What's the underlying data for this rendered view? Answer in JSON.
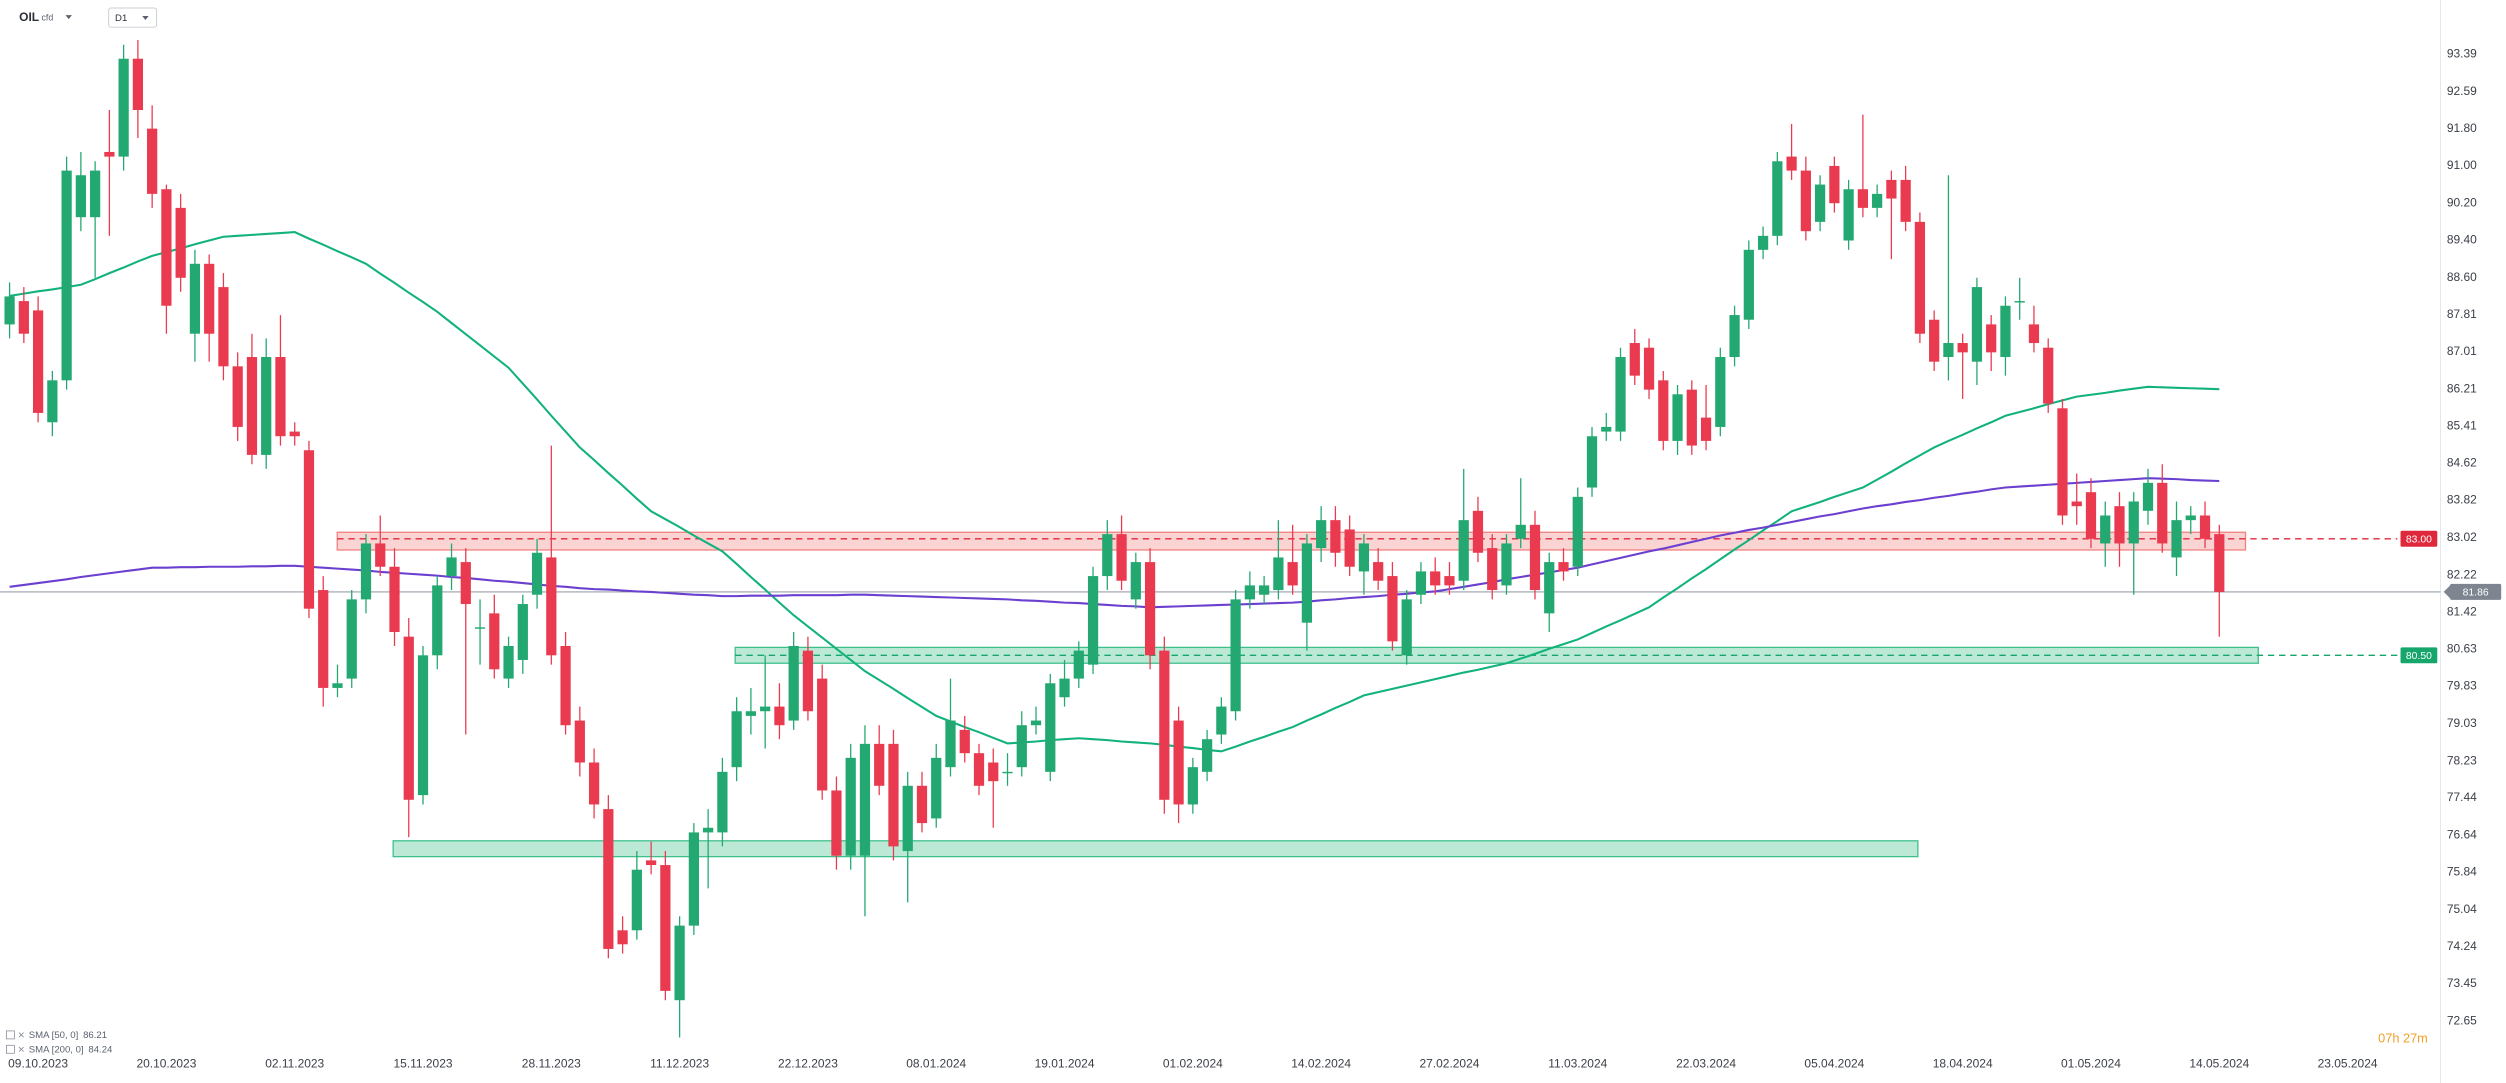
{
  "chart_data": {
    "type": "candlestick",
    "symbol": "OIL",
    "instrument": "cfd",
    "timeframe": "D1",
    "countdown": "07h 27m",
    "categories": [
      null,
      null,
      "09.10.2023",
      null,
      null,
      null,
      null,
      null,
      null,
      null,
      null,
      "20.10.2023",
      null,
      null,
      null,
      null,
      null,
      null,
      null,
      null,
      "02.11.2023",
      null,
      null,
      null,
      null,
      null,
      null,
      null,
      null,
      "15.11.2023",
      null,
      null,
      null,
      null,
      null,
      null,
      null,
      null,
      "28.11.2023",
      null,
      null,
      null,
      null,
      null,
      null,
      null,
      null,
      "11.12.2023",
      null,
      null,
      null,
      null,
      null,
      null,
      null,
      null,
      "22.12.2023",
      null,
      null,
      null,
      null,
      null,
      null,
      null,
      null,
      "08.01.2024",
      null,
      null,
      null,
      null,
      null,
      null,
      null,
      null,
      "19.01.2024",
      null,
      null,
      null,
      null,
      null,
      null,
      null,
      null,
      "01.02.2024",
      null,
      null,
      null,
      null,
      null,
      null,
      null,
      null,
      "14.02.2024",
      null,
      null,
      null,
      null,
      null,
      null,
      null,
      null,
      "27.02.2024",
      null,
      null,
      null,
      null,
      null,
      null,
      null,
      null,
      "11.03.2024",
      null,
      null,
      null,
      null,
      null,
      null,
      null,
      null,
      "22.03.2024",
      null,
      null,
      null,
      null,
      null,
      null,
      null,
      null,
      "05.04.2024",
      null,
      null,
      null,
      null,
      null,
      null,
      null,
      null,
      "18.04.2024",
      null,
      null,
      null,
      null,
      null,
      null,
      null,
      null,
      "01.05.2024",
      null,
      null,
      null,
      null,
      null,
      null,
      null,
      null,
      "14.05.2024",
      null,
      null,
      null,
      null,
      null,
      null,
      null,
      null,
      "23.05.2024",
      null,
      null,
      null,
      null,
      null
    ],
    "open": [
      87.6,
      88.1,
      87.9,
      85.5,
      86.4,
      89.9,
      89.9,
      91.3,
      91.2,
      93.3,
      91.8,
      90.5,
      90.1,
      87.4,
      88.9,
      88.4,
      86.7,
      86.9,
      84.8,
      86.9,
      85.3,
      84.9,
      81.9,
      79.8,
      80.0,
      81.7,
      82.9,
      82.4,
      80.9,
      77.5,
      80.5,
      82.2,
      82.5,
      81.1,
      81.4,
      80.0,
      80.4,
      81.8,
      82.6,
      80.7,
      79.1,
      78.2,
      77.2,
      74.6,
      74.6,
      76.1,
      76.0,
      73.1,
      74.7,
      76.7,
      76.7,
      78.1,
      79.2,
      79.3,
      79.4,
      79.1,
      80.6,
      80.0,
      77.6,
      76.2,
      76.2,
      78.6,
      78.6,
      76.3,
      77.7,
      77.0,
      78.1,
      78.9,
      78.4,
      78.2,
      78.0,
      78.1,
      79.0,
      78.0,
      79.6,
      80.0,
      80.3,
      82.2,
      83.1,
      81.7,
      82.5,
      80.6,
      79.1,
      77.3,
      78.0,
      78.8,
      79.3,
      81.7,
      81.8,
      81.9,
      82.5,
      81.2,
      82.8,
      83.4,
      83.2,
      82.3,
      82.5,
      82.2,
      80.5,
      81.8,
      82.3,
      82.2,
      82.1,
      83.6,
      82.8,
      82.0,
      83.0,
      83.3,
      81.4,
      82.5,
      82.4,
      84.1,
      85.3,
      85.3,
      87.2,
      87.1,
      86.4,
      85.1,
      86.2,
      85.6,
      85.4,
      86.9,
      87.7,
      89.2,
      89.5,
      91.2,
      90.9,
      89.8,
      91.0,
      89.4,
      90.5,
      90.1,
      90.7,
      90.7,
      89.8,
      87.7,
      86.9,
      87.2,
      86.8,
      87.6,
      86.9,
      88.1,
      87.6,
      87.1,
      85.8,
      83.8,
      84.0,
      82.9,
      83.7,
      82.9,
      83.6,
      84.2,
      82.6,
      83.4,
      83.5,
      83.1,
      null,
      null,
      null,
      null,
      null,
      null,
      null,
      null,
      null,
      null,
      null,
      null,
      null,
      null
    ],
    "high": [
      88.5,
      88.4,
      88.2,
      86.6,
      91.2,
      91.3,
      91.1,
      92.2,
      93.6,
      93.7,
      92.3,
      90.6,
      90.4,
      89.2,
      89.1,
      88.7,
      87.0,
      87.4,
      87.3,
      87.8,
      85.5,
      85.1,
      82.2,
      80.3,
      81.9,
      83.1,
      83.5,
      82.8,
      81.3,
      80.7,
      82.2,
      82.9,
      82.8,
      81.7,
      81.8,
      80.9,
      81.8,
      83.0,
      85.0,
      81.0,
      79.4,
      78.5,
      77.5,
      74.9,
      76.3,
      76.5,
      76.3,
      74.9,
      76.9,
      77.2,
      78.3,
      79.6,
      79.8,
      80.5,
      79.9,
      81.0,
      80.9,
      80.3,
      77.9,
      78.6,
      79.0,
      79.0,
      78.9,
      78.0,
      78.0,
      78.6,
      80.0,
      79.2,
      78.6,
      78.5,
      78.4,
      79.3,
      79.4,
      80.1,
      80.4,
      80.8,
      82.4,
      83.4,
      83.5,
      82.7,
      82.8,
      80.9,
      79.4,
      78.3,
      78.9,
      79.6,
      81.9,
      82.3,
      82.2,
      83.4,
      83.3,
      83.1,
      83.7,
      83.7,
      83.5,
      83.1,
      82.8,
      82.5,
      81.9,
      82.5,
      82.6,
      82.5,
      84.5,
      83.9,
      83.1,
      83.1,
      84.3,
      83.6,
      82.7,
      82.8,
      84.1,
      85.4,
      85.7,
      87.1,
      87.5,
      87.3,
      86.6,
      86.3,
      86.4,
      86.3,
      87.1,
      88.0,
      89.4,
      89.7,
      91.3,
      91.9,
      91.2,
      90.8,
      91.2,
      90.7,
      92.1,
      90.6,
      90.9,
      91.0,
      90.0,
      87.9,
      90.8,
      87.4,
      88.6,
      87.8,
      88.2,
      88.6,
      88.0,
      87.3,
      86.0,
      84.4,
      84.3,
      83.8,
      84.0,
      84.0,
      84.5,
      84.6,
      83.8,
      83.7,
      83.8,
      83.3,
      null,
      null,
      null,
      null,
      null,
      null,
      null,
      null,
      null,
      null,
      null,
      null,
      null,
      null
    ],
    "low": [
      87.3,
      87.2,
      85.5,
      85.2,
      86.2,
      89.6,
      88.6,
      89.5,
      90.9,
      91.6,
      90.1,
      87.4,
      88.3,
      86.8,
      86.8,
      86.4,
      85.1,
      84.6,
      84.5,
      85.0,
      85.0,
      81.3,
      79.4,
      79.6,
      79.8,
      81.4,
      82.2,
      80.7,
      76.6,
      77.3,
      80.2,
      81.9,
      78.8,
      80.3,
      80.0,
      79.8,
      80.1,
      81.5,
      80.3,
      78.8,
      77.9,
      77.0,
      74.0,
      74.1,
      74.4,
      75.8,
      73.1,
      72.3,
      74.5,
      75.5,
      76.4,
      77.8,
      78.8,
      78.5,
      78.7,
      78.9,
      79.1,
      77.4,
      75.9,
      75.9,
      74.9,
      77.5,
      76.1,
      75.2,
      76.7,
      76.8,
      77.9,
      78.2,
      77.5,
      76.8,
      77.7,
      77.9,
      78.8,
      77.8,
      79.4,
      79.8,
      80.1,
      81.9,
      81.9,
      81.5,
      80.2,
      77.1,
      76.9,
      77.1,
      77.8,
      78.6,
      79.1,
      81.5,
      81.6,
      81.7,
      81.8,
      80.6,
      82.5,
      82.4,
      82.2,
      81.8,
      81.9,
      80.6,
      80.3,
      81.6,
      81.8,
      81.8,
      81.9,
      82.5,
      81.7,
      81.8,
      82.8,
      81.7,
      81.0,
      82.1,
      82.2,
      83.9,
      85.1,
      85.1,
      86.3,
      86.0,
      84.9,
      84.8,
      84.8,
      84.9,
      85.2,
      86.7,
      87.5,
      89.0,
      89.3,
      90.7,
      89.4,
      89.6,
      90.0,
      89.2,
      89.9,
      89.9,
      89.0,
      89.6,
      87.2,
      86.6,
      86.4,
      86.0,
      86.3,
      86.6,
      86.5,
      87.7,
      87.0,
      85.7,
      83.3,
      83.3,
      82.8,
      82.4,
      82.4,
      81.8,
      83.3,
      82.7,
      82.2,
      83.1,
      82.8,
      80.9,
      null,
      null,
      null,
      null,
      null,
      null,
      null,
      null,
      null,
      null,
      null,
      null,
      null,
      null
    ],
    "close": [
      88.2,
      87.4,
      85.7,
      86.4,
      90.9,
      90.8,
      90.9,
      91.2,
      93.3,
      92.2,
      90.4,
      88.0,
      88.6,
      88.9,
      87.4,
      86.7,
      85.4,
      84.8,
      86.9,
      85.2,
      85.2,
      81.5,
      79.8,
      79.9,
      81.7,
      82.9,
      82.4,
      81.0,
      77.4,
      80.5,
      82.0,
      82.6,
      81.6,
      81.1,
      80.2,
      80.7,
      81.6,
      82.7,
      80.5,
      79.0,
      78.2,
      77.3,
      74.2,
      74.3,
      75.9,
      76.0,
      73.3,
      74.7,
      76.7,
      76.8,
      78.0,
      79.3,
      79.3,
      79.4,
      79.0,
      80.7,
      79.3,
      77.6,
      76.2,
      78.3,
      78.6,
      77.7,
      76.4,
      77.7,
      76.9,
      78.3,
      79.1,
      78.4,
      77.7,
      77.8,
      78.0,
      79.0,
      79.1,
      79.9,
      80.0,
      80.6,
      82.2,
      83.1,
      82.1,
      82.5,
      80.5,
      77.4,
      77.3,
      78.1,
      78.7,
      79.4,
      81.7,
      82.0,
      82.0,
      82.6,
      82.0,
      82.9,
      83.4,
      82.7,
      82.4,
      82.9,
      82.1,
      80.8,
      81.7,
      82.3,
      82.0,
      82.0,
      83.4,
      82.7,
      81.9,
      82.9,
      83.3,
      81.9,
      82.5,
      82.3,
      83.9,
      85.2,
      85.4,
      86.9,
      86.5,
      86.2,
      85.1,
      86.1,
      85.0,
      85.1,
      86.9,
      87.8,
      89.2,
      89.5,
      91.1,
      90.9,
      89.6,
      90.6,
      90.2,
      90.5,
      90.1,
      90.4,
      90.3,
      89.8,
      87.4,
      86.8,
      87.2,
      87.0,
      88.4,
      87.0,
      88.0,
      88.1,
      87.2,
      85.9,
      83.5,
      83.7,
      83.0,
      83.5,
      82.9,
      83.8,
      84.2,
      82.9,
      83.4,
      83.5,
      83.0,
      81.86,
      null,
      null,
      null,
      null,
      null,
      null,
      null,
      null,
      null,
      null,
      null,
      null,
      null,
      null
    ],
    "up_color": "#22a870",
    "down_color": "#ea3a50",
    "series": [
      {
        "name": "SMA [50, 0]",
        "color": "#12b27c",
        "values": [
          88.21,
          88.26,
          88.31,
          88.35,
          88.4,
          88.45,
          88.57,
          88.7,
          88.82,
          88.95,
          89.07,
          89.15,
          89.23,
          89.32,
          89.4,
          89.48,
          89.5,
          89.52,
          89.54,
          89.56,
          89.58,
          89.44,
          89.31,
          89.17,
          89.04,
          88.9,
          88.69,
          88.49,
          88.28,
          88.08,
          87.87,
          87.63,
          87.39,
          87.15,
          86.91,
          86.67,
          86.33,
          85.99,
          85.64,
          85.3,
          84.96,
          84.69,
          84.41,
          84.14,
          83.86,
          83.59,
          83.42,
          83.25,
          83.07,
          82.9,
          82.73,
          82.46,
          82.18,
          81.91,
          81.63,
          81.36,
          81.12,
          80.88,
          80.64,
          80.4,
          80.16,
          79.97,
          79.78,
          79.58,
          79.39,
          79.2,
          79.08,
          78.96,
          78.85,
          78.73,
          78.61,
          78.63,
          78.65,
          78.68,
          78.7,
          78.72,
          78.7,
          78.68,
          78.65,
          78.63,
          78.61,
          78.58,
          78.54,
          78.51,
          78.47,
          78.44,
          78.54,
          78.65,
          78.75,
          78.86,
          78.96,
          79.1,
          79.23,
          79.37,
          79.5,
          79.64,
          79.71,
          79.78,
          79.85,
          79.92,
          79.99,
          80.06,
          80.13,
          80.19,
          80.26,
          80.33,
          80.43,
          80.53,
          80.64,
          80.74,
          80.84,
          80.98,
          81.12,
          81.25,
          81.39,
          81.53,
          81.74,
          81.94,
          82.15,
          82.35,
          82.56,
          82.77,
          82.97,
          83.18,
          83.38,
          83.59,
          83.69,
          83.79,
          83.9,
          84.0,
          84.1,
          84.27,
          84.44,
          84.62,
          84.79,
          84.96,
          85.1,
          85.23,
          85.37,
          85.5,
          85.64,
          85.72,
          85.8,
          85.89,
          85.97,
          86.05,
          86.09,
          86.13,
          86.18,
          86.22,
          86.26,
          86.25,
          86.24,
          86.23,
          86.22,
          86.21,
          null,
          null,
          null,
          null,
          null,
          null,
          null,
          null,
          null,
          null,
          null,
          null,
          null,
          null
        ]
      },
      {
        "name": "SMA [200, 0]",
        "color": "#6b3fcf",
        "values": [
          81.97,
          82.01,
          82.05,
          82.09,
          82.13,
          82.18,
          82.22,
          82.26,
          82.3,
          82.34,
          82.38,
          82.38,
          82.39,
          82.39,
          82.4,
          82.4,
          82.4,
          82.41,
          82.41,
          82.42,
          82.42,
          82.4,
          82.38,
          82.36,
          82.34,
          82.32,
          82.29,
          82.27,
          82.25,
          82.23,
          82.21,
          82.18,
          82.16,
          82.13,
          82.1,
          82.08,
          82.05,
          82.02,
          81.99,
          81.97,
          81.94,
          81.92,
          81.91,
          81.89,
          81.87,
          81.86,
          81.84,
          81.82,
          81.8,
          81.79,
          81.77,
          81.77,
          81.78,
          81.78,
          81.78,
          81.79,
          81.79,
          81.79,
          81.79,
          81.8,
          81.8,
          81.79,
          81.78,
          81.77,
          81.76,
          81.75,
          81.74,
          81.73,
          81.72,
          81.71,
          81.7,
          81.68,
          81.67,
          81.65,
          81.63,
          81.62,
          81.6,
          81.58,
          81.56,
          81.55,
          81.53,
          81.54,
          81.55,
          81.56,
          81.57,
          81.58,
          81.59,
          81.6,
          81.61,
          81.62,
          81.63,
          81.65,
          81.68,
          81.7,
          81.73,
          81.75,
          81.77,
          81.8,
          81.82,
          81.85,
          81.87,
          81.92,
          81.97,
          82.02,
          82.07,
          82.13,
          82.18,
          82.23,
          82.28,
          82.33,
          82.38,
          82.45,
          82.52,
          82.59,
          82.66,
          82.73,
          82.79,
          82.86,
          82.93,
          83.0,
          83.07,
          83.13,
          83.19,
          83.24,
          83.3,
          83.36,
          83.42,
          83.48,
          83.53,
          83.59,
          83.65,
          83.7,
          83.74,
          83.79,
          83.83,
          83.88,
          83.92,
          83.97,
          84.01,
          84.06,
          84.1,
          84.12,
          84.14,
          84.16,
          84.18,
          84.2,
          84.22,
          84.24,
          84.26,
          84.28,
          84.3,
          84.29,
          84.28,
          84.26,
          84.25,
          84.24,
          null,
          null,
          null,
          null,
          null,
          null,
          null,
          null,
          null,
          null,
          null,
          null,
          null,
          null
        ]
      }
    ],
    "zones": [
      {
        "from": 82.76,
        "to": 83.14,
        "color": "#f08080"
      },
      {
        "from": 80.33,
        "to": 80.67,
        "color": "#3cc08a"
      },
      {
        "from": 76.18,
        "to": 76.52,
        "color": "#3cc08a"
      }
    ],
    "levels": [
      {
        "value": 83,
        "label": "83.00",
        "color": "#e0283c"
      },
      {
        "value": 80.5,
        "label": "80.50",
        "color": "#16a56a"
      },
      {
        "value": 81.86,
        "label": "81.86",
        "color": "#7e8591"
      }
    ],
    "ylim": [
      72.27,
      94.56
    ],
    "yticks": [
      72.65,
      73.45,
      74.24,
      75.04,
      75.84,
      76.64,
      77.44,
      78.23,
      79.03,
      79.83,
      80.63,
      81.42,
      82.22,
      83.02,
      83.82,
      84.62,
      85.41,
      86.21,
      87.01,
      87.81,
      {
        "value": 88.6,
        "label": "88.60"
      },
      {
        "value": 89.4,
        "label": "89.40"
      },
      {
        "value": 90.2,
        "label": "90.20"
      },
      {
        "value": 91,
        "label": "91.00"
      },
      {
        "value": 91.8,
        "label": "91.80"
      },
      92.59,
      93.39
    ],
    "grid": false
  }
}
